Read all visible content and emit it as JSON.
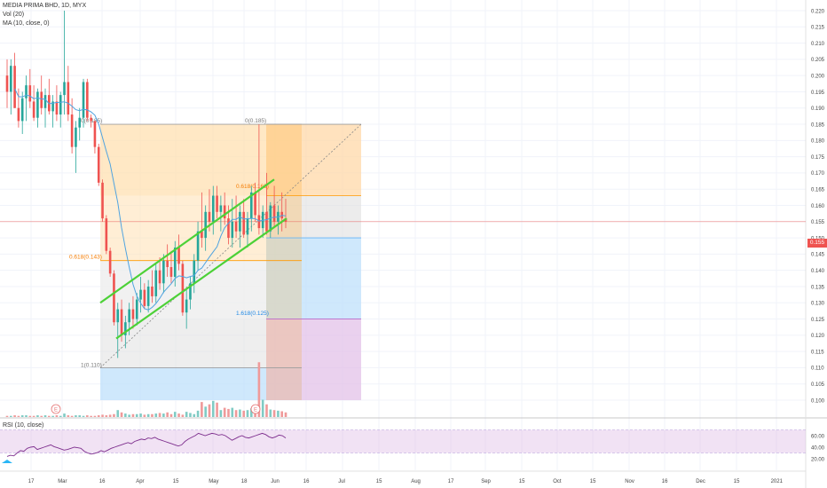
{
  "legend": {
    "symbol_line": "MEDIA PRIMA BHD, 1D, MYX",
    "vol_line": "Vol (20)",
    "ma_line": "MA (10, close, 0)"
  },
  "rsi": {
    "label": "RSI (10, close)",
    "ticks": [
      "60.00",
      "40.00",
      "20.00"
    ],
    "tick_values": [
      60,
      40,
      20
    ],
    "band_upper": 70,
    "band_lower": 30,
    "values": [
      24,
      26,
      25,
      30,
      34,
      33,
      38,
      40,
      41,
      36,
      38,
      40,
      42,
      44,
      41,
      39,
      37,
      35,
      36,
      38,
      40,
      39,
      38,
      33,
      30,
      28,
      29,
      31,
      34,
      32,
      35,
      38,
      40,
      42,
      44,
      46,
      48,
      46,
      50,
      52,
      54,
      53,
      56,
      55,
      57,
      54,
      52,
      50,
      48,
      46,
      44,
      42,
      44,
      50,
      54,
      57,
      60,
      64,
      62,
      60,
      62,
      64,
      63,
      61,
      62,
      60,
      56,
      52,
      55,
      58,
      60,
      57,
      56,
      58,
      60,
      62,
      64,
      62,
      58,
      56,
      58,
      61,
      60,
      56
    ]
  },
  "price_axis": {
    "ticks": [
      "0.220",
      "0.215",
      "0.210",
      "0.205",
      "0.200",
      "0.195",
      "0.190",
      "0.185",
      "0.180",
      "0.175",
      "0.170",
      "0.165",
      "0.160",
      "0.155",
      "0.150",
      "0.145",
      "0.140",
      "0.135",
      "0.130",
      "0.125",
      "0.120",
      "0.115",
      "0.110",
      "0.105",
      "0.100"
    ],
    "current_price": "0.155"
  },
  "time_axis": {
    "labels": [
      "17",
      "Mar",
      "16",
      "Apr",
      "15",
      "May",
      "18",
      "Jun",
      "16",
      "Jul",
      "15",
      "Aug",
      "17",
      "Sep",
      "15",
      "Oct",
      "15",
      "Nov",
      "16",
      "Dec",
      "15",
      "2021"
    ]
  },
  "fib": {
    "top_label": "0(0.185)",
    "top_label_right": "0(0.185)",
    "mid_label": "0.618(0.143)",
    "right_mid_label": "0.618(0.163)",
    "bottom_label": "1(0.110)",
    "ext_label": "1.618(0.125)",
    "levels": [
      0.185,
      0.163,
      0.143,
      0.15,
      0.125,
      0.11
    ]
  },
  "events": [
    "E",
    "E"
  ],
  "chart_data": {
    "type": "candlestick",
    "title": "MEDIA PRIMA BHD, 1D, MYX",
    "ylim": [
      0.097,
      0.222
    ],
    "ohlc": [
      [
        0.2,
        0.205,
        0.19,
        0.195
      ],
      [
        0.195,
        0.205,
        0.188,
        0.203
      ],
      [
        0.203,
        0.207,
        0.19,
        0.19
      ],
      [
        0.19,
        0.196,
        0.184,
        0.186
      ],
      [
        0.186,
        0.195,
        0.182,
        0.193
      ],
      [
        0.193,
        0.2,
        0.186,
        0.197
      ],
      [
        0.197,
        0.202,
        0.19,
        0.192
      ],
      [
        0.192,
        0.197,
        0.186,
        0.187
      ],
      [
        0.187,
        0.196,
        0.184,
        0.195
      ],
      [
        0.195,
        0.2,
        0.188,
        0.19
      ],
      [
        0.19,
        0.196,
        0.184,
        0.194
      ],
      [
        0.194,
        0.199,
        0.188,
        0.189
      ],
      [
        0.189,
        0.194,
        0.184,
        0.192
      ],
      [
        0.192,
        0.197,
        0.186,
        0.188
      ],
      [
        0.188,
        0.195,
        0.184,
        0.194
      ],
      [
        0.194,
        0.22,
        0.188,
        0.198
      ],
      [
        0.198,
        0.203,
        0.186,
        0.188
      ],
      [
        0.188,
        0.193,
        0.176,
        0.178
      ],
      [
        0.178,
        0.186,
        0.17,
        0.184
      ],
      [
        0.184,
        0.19,
        0.18,
        0.187
      ],
      [
        0.187,
        0.199,
        0.184,
        0.198
      ],
      [
        0.198,
        0.199,
        0.186,
        0.187
      ],
      [
        0.187,
        0.188,
        0.184,
        0.186
      ],
      [
        0.186,
        0.186,
        0.176,
        0.178
      ],
      [
        0.178,
        0.179,
        0.166,
        0.167
      ],
      [
        0.167,
        0.168,
        0.155,
        0.156
      ],
      [
        0.156,
        0.157,
        0.145,
        0.146
      ],
      [
        0.146,
        0.147,
        0.138,
        0.139
      ],
      [
        0.139,
        0.14,
        0.123,
        0.124
      ],
      [
        0.124,
        0.13,
        0.113,
        0.128
      ],
      [
        0.128,
        0.131,
        0.118,
        0.12
      ],
      [
        0.12,
        0.126,
        0.116,
        0.124
      ],
      [
        0.124,
        0.13,
        0.12,
        0.128
      ],
      [
        0.128,
        0.132,
        0.122,
        0.125
      ],
      [
        0.125,
        0.133,
        0.123,
        0.131
      ],
      [
        0.131,
        0.138,
        0.127,
        0.134
      ],
      [
        0.134,
        0.136,
        0.128,
        0.129
      ],
      [
        0.129,
        0.137,
        0.127,
        0.135
      ],
      [
        0.135,
        0.14,
        0.13,
        0.132
      ],
      [
        0.132,
        0.142,
        0.13,
        0.14
      ],
      [
        0.14,
        0.144,
        0.134,
        0.136
      ],
      [
        0.136,
        0.145,
        0.133,
        0.143
      ],
      [
        0.143,
        0.148,
        0.138,
        0.141
      ],
      [
        0.141,
        0.146,
        0.136,
        0.138
      ],
      [
        0.138,
        0.149,
        0.135,
        0.147
      ],
      [
        0.147,
        0.151,
        0.14,
        0.142
      ],
      [
        0.142,
        0.143,
        0.126,
        0.127
      ],
      [
        0.127,
        0.134,
        0.122,
        0.131
      ],
      [
        0.131,
        0.138,
        0.128,
        0.136
      ],
      [
        0.136,
        0.145,
        0.133,
        0.143
      ],
      [
        0.143,
        0.155,
        0.14,
        0.152
      ],
      [
        0.152,
        0.164,
        0.147,
        0.15
      ],
      [
        0.15,
        0.16,
        0.146,
        0.158
      ],
      [
        0.158,
        0.165,
        0.152,
        0.155
      ],
      [
        0.155,
        0.166,
        0.151,
        0.163
      ],
      [
        0.163,
        0.166,
        0.156,
        0.158
      ],
      [
        0.158,
        0.163,
        0.152,
        0.16
      ],
      [
        0.16,
        0.164,
        0.154,
        0.156
      ],
      [
        0.156,
        0.16,
        0.148,
        0.15
      ],
      [
        0.15,
        0.162,
        0.147,
        0.155
      ],
      [
        0.155,
        0.163,
        0.15,
        0.152
      ],
      [
        0.152,
        0.16,
        0.147,
        0.158
      ],
      [
        0.158,
        0.162,
        0.15,
        0.151
      ],
      [
        0.151,
        0.158,
        0.147,
        0.156
      ],
      [
        0.156,
        0.166,
        0.152,
        0.164
      ],
      [
        0.164,
        0.167,
        0.155,
        0.157
      ],
      [
        0.157,
        0.185,
        0.151,
        0.153
      ],
      [
        0.153,
        0.16,
        0.15,
        0.158
      ],
      [
        0.158,
        0.17,
        0.151,
        0.152
      ],
      [
        0.152,
        0.161,
        0.15,
        0.16
      ],
      [
        0.16,
        0.166,
        0.153,
        0.155
      ],
      [
        0.155,
        0.16,
        0.151,
        0.158
      ],
      [
        0.158,
        0.164,
        0.152,
        0.156
      ],
      [
        0.156,
        0.162,
        0.153,
        0.155
      ]
    ]
  }
}
